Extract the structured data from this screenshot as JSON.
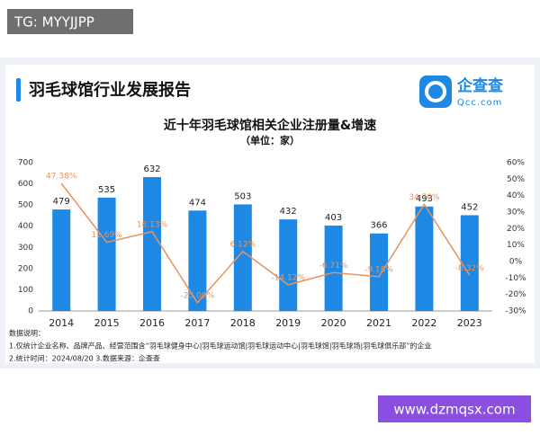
{
  "watermark_top": "TG: MYYJJPP",
  "watermark_bottom": "www.dzmqsx.com",
  "header": {
    "title": "羽毛球馆行业发展报告",
    "logo_name": "企查查",
    "logo_domain": "Qcc.com"
  },
  "chart_data": {
    "type": "bar-line",
    "title": "近十年羽毛球馆相关企业注册量&增速",
    "subtitle": "（单位：家）",
    "categories": [
      "2014",
      "2015",
      "2016",
      "2017",
      "2018",
      "2019",
      "2020",
      "2021",
      "2022",
      "2023"
    ],
    "series": [
      {
        "type": "bar",
        "color": "#1e88e5",
        "values": [
          479,
          535,
          632,
          474,
          503,
          432,
          403,
          366,
          493,
          452
        ]
      },
      {
        "type": "line",
        "axis": "y2",
        "color": "#e8925c",
        "values": [
          47.38,
          11.69,
          18.13,
          -25.0,
          6.12,
          -14.12,
          -6.71,
          -9.18,
          34.7,
          -8.32
        ],
        "value_labels": [
          "47.38%",
          "11.69%",
          "18.13%",
          "-25.00%",
          "6.12%",
          "-14.12%",
          "-6.71%",
          "-9.18%",
          "34.70%",
          "-8.32%"
        ]
      }
    ],
    "ylim": [
      0,
      700
    ],
    "yticks": [
      0,
      100,
      200,
      300,
      400,
      500,
      600,
      700
    ],
    "y2lim": [
      -30,
      60
    ],
    "y2ticks": [
      {
        "value": -30,
        "label": "-30%"
      },
      {
        "value": -20,
        "label": "-20%"
      },
      {
        "value": -10,
        "label": "-10%"
      },
      {
        "value": 0,
        "label": "0%"
      },
      {
        "value": 10,
        "label": "10%"
      },
      {
        "value": 20,
        "label": "20%"
      },
      {
        "value": 30,
        "label": "30%"
      },
      {
        "value": 40,
        "label": "40%"
      },
      {
        "value": 50,
        "label": "50%"
      },
      {
        "value": 60,
        "label": "60%"
      }
    ],
    "grid": false
  },
  "notes": [
    "数据说明：",
    "1.仅统计企业名称、品牌产品、经营范围含“羽毛球健身中心|羽毛球运动馆|羽毛球运动中心|羽毛球馆|羽毛球场|羽毛球俱乐部”的企业",
    "2.统计时间：2024/08/20   3.数据来源：企查查"
  ]
}
